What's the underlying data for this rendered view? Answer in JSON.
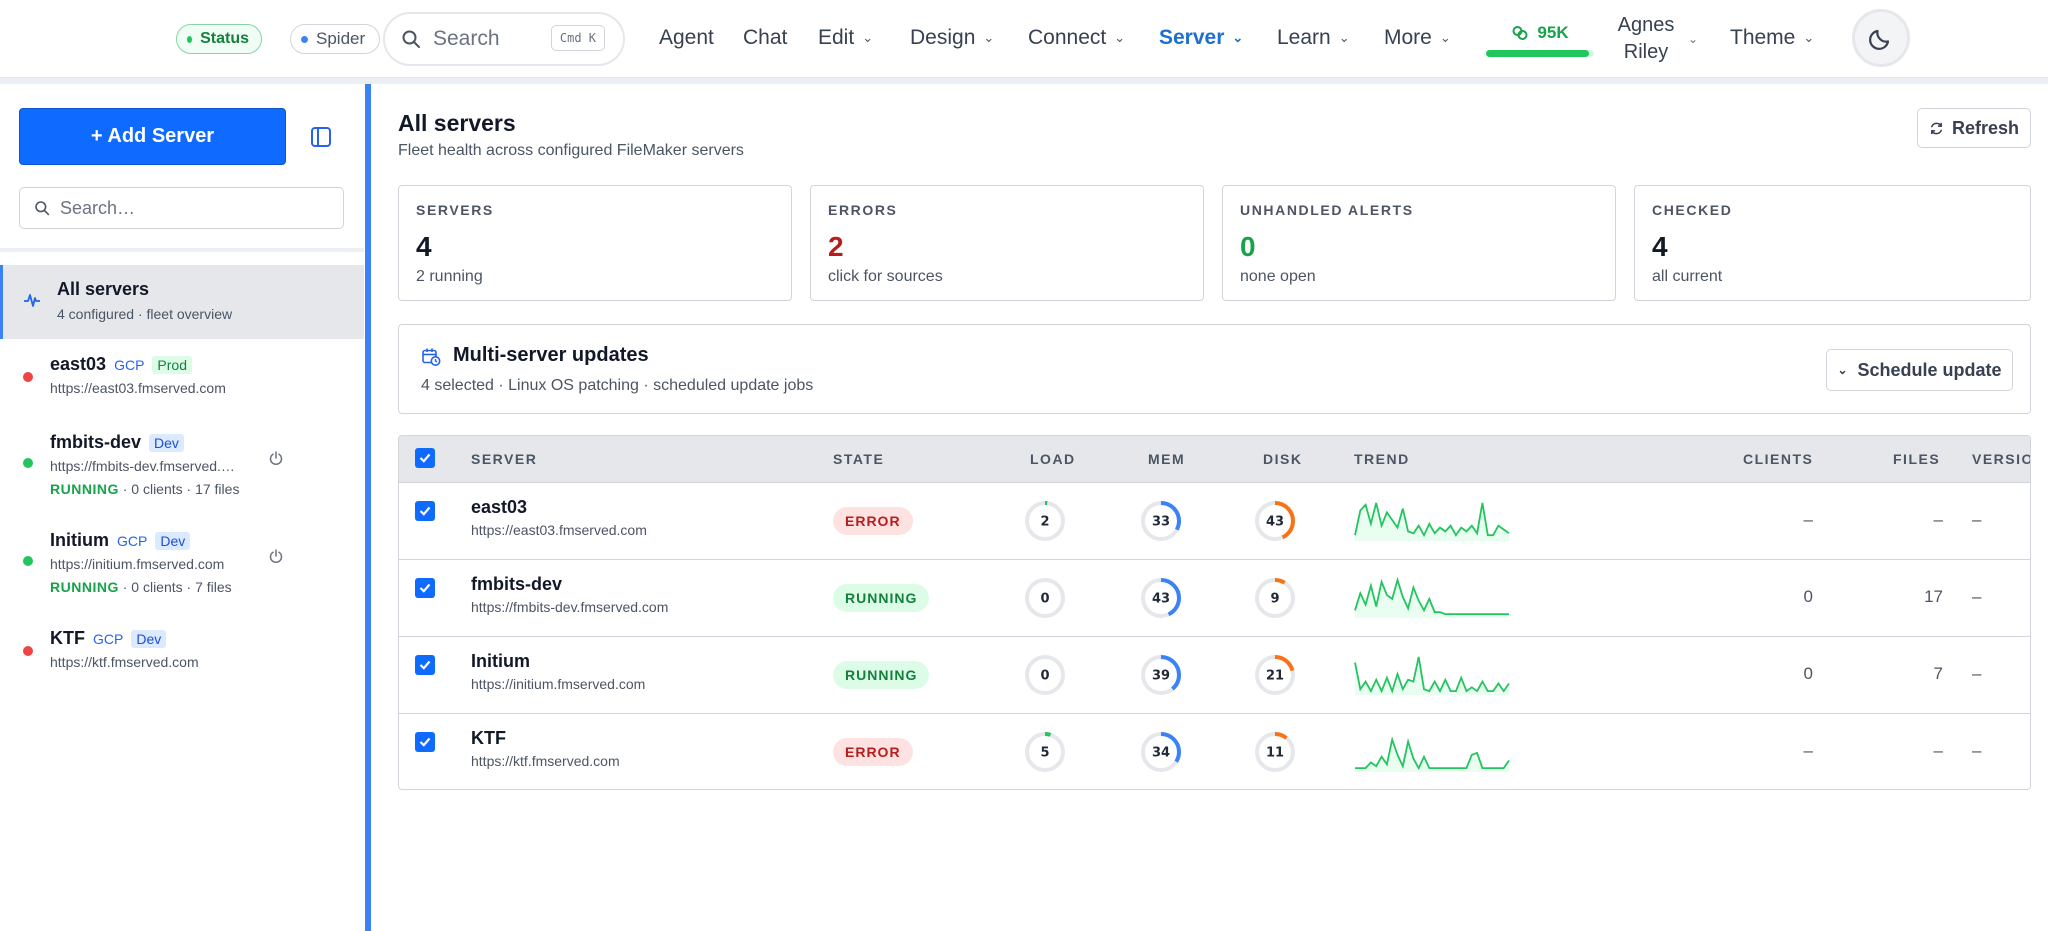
{
  "nav": {
    "status_label": "Status",
    "spider_label": "Spider",
    "search_placeholder": "Search",
    "search_shortcut": "Cmd K",
    "items": [
      {
        "label": "Agent"
      },
      {
        "label": "Chat"
      },
      {
        "label": "Edit"
      },
      {
        "label": "Design"
      },
      {
        "label": "Connect"
      },
      {
        "label": "Server"
      },
      {
        "label": "Learn"
      },
      {
        "label": "More"
      },
      {
        "label": "Theme"
      }
    ],
    "active_item": "Server",
    "meter_label": "95K",
    "meter_fraction": 0.95,
    "user_first": "Agnes",
    "user_last": "Riley",
    "colors": {
      "accent": "#1d6fd1",
      "running": "#16a34a",
      "error": "#dc2626"
    }
  },
  "sidebar": {
    "add_label": "+ Add Server",
    "search_placeholder": "Search…",
    "all": {
      "title": "All servers",
      "sub": "4 configured · fleet overview"
    },
    "servers": [
      {
        "name": "east03",
        "tags": [
          "GCP",
          "Prod"
        ],
        "url": "https://east03.fmserved.com",
        "status": "error"
      },
      {
        "name": "fmbits-dev",
        "tags": [
          "Dev"
        ],
        "url": "https://fmbits-dev.fmserved.com",
        "state": "RUNNING",
        "meta": " · 0 clients · 17 files",
        "status": "running"
      },
      {
        "name": "Initium",
        "tags": [
          "GCP",
          "Dev"
        ],
        "url": "https://initium.fmserved.com",
        "state": "RUNNING",
        "meta": " · 0 clients · 7 files",
        "status": "running"
      },
      {
        "name": "KTF",
        "tags": [
          "GCP",
          "Dev"
        ],
        "url": "https://ktf.fmserved.com",
        "status": "error"
      }
    ]
  },
  "main": {
    "title": "All servers",
    "subtitle": "Fleet health across configured FileMaker servers",
    "refresh_label": "Refresh",
    "stats": [
      {
        "label": "SERVERS",
        "value": "4",
        "note": "2 running",
        "color": "#111827"
      },
      {
        "label": "ERRORS",
        "value": "2",
        "note": "click for sources",
        "color": "#b91c1c"
      },
      {
        "label": "UNHANDLED ALERTS",
        "value": "0",
        "note": "none open",
        "color": "#16a34a"
      },
      {
        "label": "CHECKED",
        "value": "4",
        "note": "all current",
        "color": "#111827"
      }
    ],
    "updates": {
      "title": "Multi-server updates",
      "sub": "4 selected · Linux OS patching · scheduled update jobs",
      "schedule_label": "Schedule update"
    }
  },
  "table": {
    "headers": {
      "server": "SERVER",
      "state": "STATE",
      "load": "LOAD",
      "mem": "MEM",
      "disk": "DISK",
      "trend": "TREND",
      "clients": "CLIENTS",
      "files": "FILES",
      "version": "VERSION"
    },
    "rows": [
      {
        "name": "east03",
        "url": "https://east03.fmserved.com",
        "state": "ERROR",
        "load": "2",
        "mem": "33",
        "disk": "43",
        "clients": "–",
        "files": "–",
        "version": "–",
        "trend": [
          0.1,
          0.75,
          0.9,
          0.4,
          0.95,
          0.35,
          0.7,
          0.5,
          0.3,
          0.8,
          0.2,
          0.15,
          0.35,
          0.1,
          0.4,
          0.15,
          0.3,
          0.2,
          0.35,
          0.1,
          0.3,
          0.2,
          0.35,
          0.15,
          0.95,
          0.1,
          0.1,
          0.35,
          0.25,
          0.15
        ]
      },
      {
        "name": "fmbits-dev",
        "url": "https://fmbits-dev.fmserved.com",
        "state": "RUNNING",
        "load": "0",
        "mem": "43",
        "disk": "9",
        "clients": "0",
        "files": "17",
        "version": "–",
        "trend": [
          0.15,
          0.6,
          0.3,
          0.8,
          0.25,
          0.9,
          0.55,
          0.45,
          0.95,
          0.5,
          0.2,
          0.75,
          0.4,
          0.15,
          0.45,
          0.1,
          0.1,
          0.05,
          0.05,
          0.05,
          0.05,
          0.05,
          0.05,
          0.05,
          0.05,
          0.05,
          0.05,
          0.05,
          0.05,
          0.05
        ]
      },
      {
        "name": "Initium",
        "url": "https://initium.fmserved.com",
        "state": "RUNNING",
        "load": "0",
        "mem": "39",
        "disk": "21",
        "clients": "0",
        "files": "7",
        "version": "–",
        "trend": [
          0.8,
          0.1,
          0.3,
          0.05,
          0.35,
          0.05,
          0.4,
          0.05,
          0.5,
          0.1,
          0.35,
          0.3,
          0.95,
          0.1,
          0.05,
          0.3,
          0.05,
          0.35,
          0.05,
          0.05,
          0.4,
          0.05,
          0.15,
          0.05,
          0.3,
          0.05,
          0.05,
          0.25,
          0.05,
          0.25
        ]
      },
      {
        "name": "KTF",
        "url": "https://ktf.fmserved.com",
        "state": "ERROR",
        "load": "5",
        "mem": "34",
        "disk": "11",
        "clients": "–",
        "files": "–",
        "version": "–",
        "trend": [
          0.05,
          0.05,
          0.05,
          0.2,
          0.1,
          0.35,
          0.15,
          0.8,
          0.4,
          0.1,
          0.75,
          0.3,
          0.05,
          0.35,
          0.05,
          0.05,
          0.05,
          0.05,
          0.05,
          0.05,
          0.05,
          0.05,
          0.4,
          0.45,
          0.05,
          0.05,
          0.05,
          0.05,
          0.05,
          0.25
        ]
      }
    ]
  }
}
